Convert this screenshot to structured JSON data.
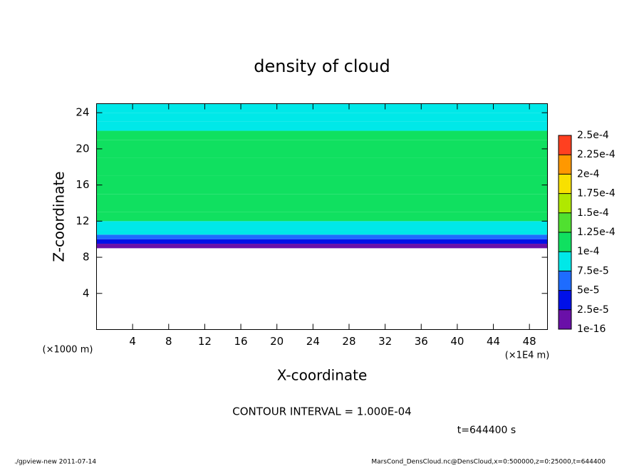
{
  "chart_data": {
    "type": "heatmap",
    "title": "density of cloud",
    "xlabel": "X-coordinate",
    "ylabel": "Z-coordinate",
    "x_unit": "(×1E4 m)",
    "y_unit": "(×1000 m)",
    "annotation": "CONTOUR INTERVAL = 1.000E-04",
    "time_label": "t=644400 s",
    "footer_left": "./gpview-new  2011-07-14",
    "footer_right": "MarsCond_DensCloud.nc@DensCloud,x=0:500000,z=0:25000,t=644400",
    "xlim": [
      0,
      50
    ],
    "xticks": [
      4,
      8,
      12,
      16,
      20,
      24,
      28,
      32,
      36,
      40,
      44,
      48
    ],
    "ylim": [
      0,
      25
    ],
    "yticks": [
      4,
      8,
      12,
      16,
      20,
      24
    ],
    "z_bins": [
      9,
      9.5,
      10,
      10.5,
      11,
      12,
      13,
      15,
      17,
      19,
      21,
      22,
      23,
      24,
      25
    ],
    "values": [
      1e-05,
      3e-05,
      6e-05,
      8e-05,
      9e-05,
      0.000105,
      0.000115,
      0.00011,
      0.000108,
      0.000105,
      0.000102,
      9.5e-05,
      8.5e-05,
      8e-05
    ],
    "colorbar": {
      "levels": [
        {
          "value": 1e-16,
          "label": "1e-16"
        },
        {
          "value": 2.5e-05,
          "label": "2.5e-5"
        },
        {
          "value": 5e-05,
          "label": "5e-5"
        },
        {
          "value": 7.5e-05,
          "label": "7.5e-5"
        },
        {
          "value": 0.0001,
          "label": "1e-4"
        },
        {
          "value": 0.000125,
          "label": "1.25e-4"
        },
        {
          "value": 0.00015,
          "label": "1.5e-4"
        },
        {
          "value": 0.000175,
          "label": "1.75e-4"
        },
        {
          "value": 0.0002,
          "label": "2e-4"
        },
        {
          "value": 0.000225,
          "label": "2.25e-4"
        },
        {
          "value": 0.00025,
          "label": "2.5e-4"
        }
      ],
      "colors": [
        "#6a10a8",
        "#0010e8",
        "#1e6cff",
        "#00e8e8",
        "#10e060",
        "#50e030",
        "#b0e800",
        "#f8e000",
        "#ff9800",
        "#ff4020"
      ]
    }
  }
}
